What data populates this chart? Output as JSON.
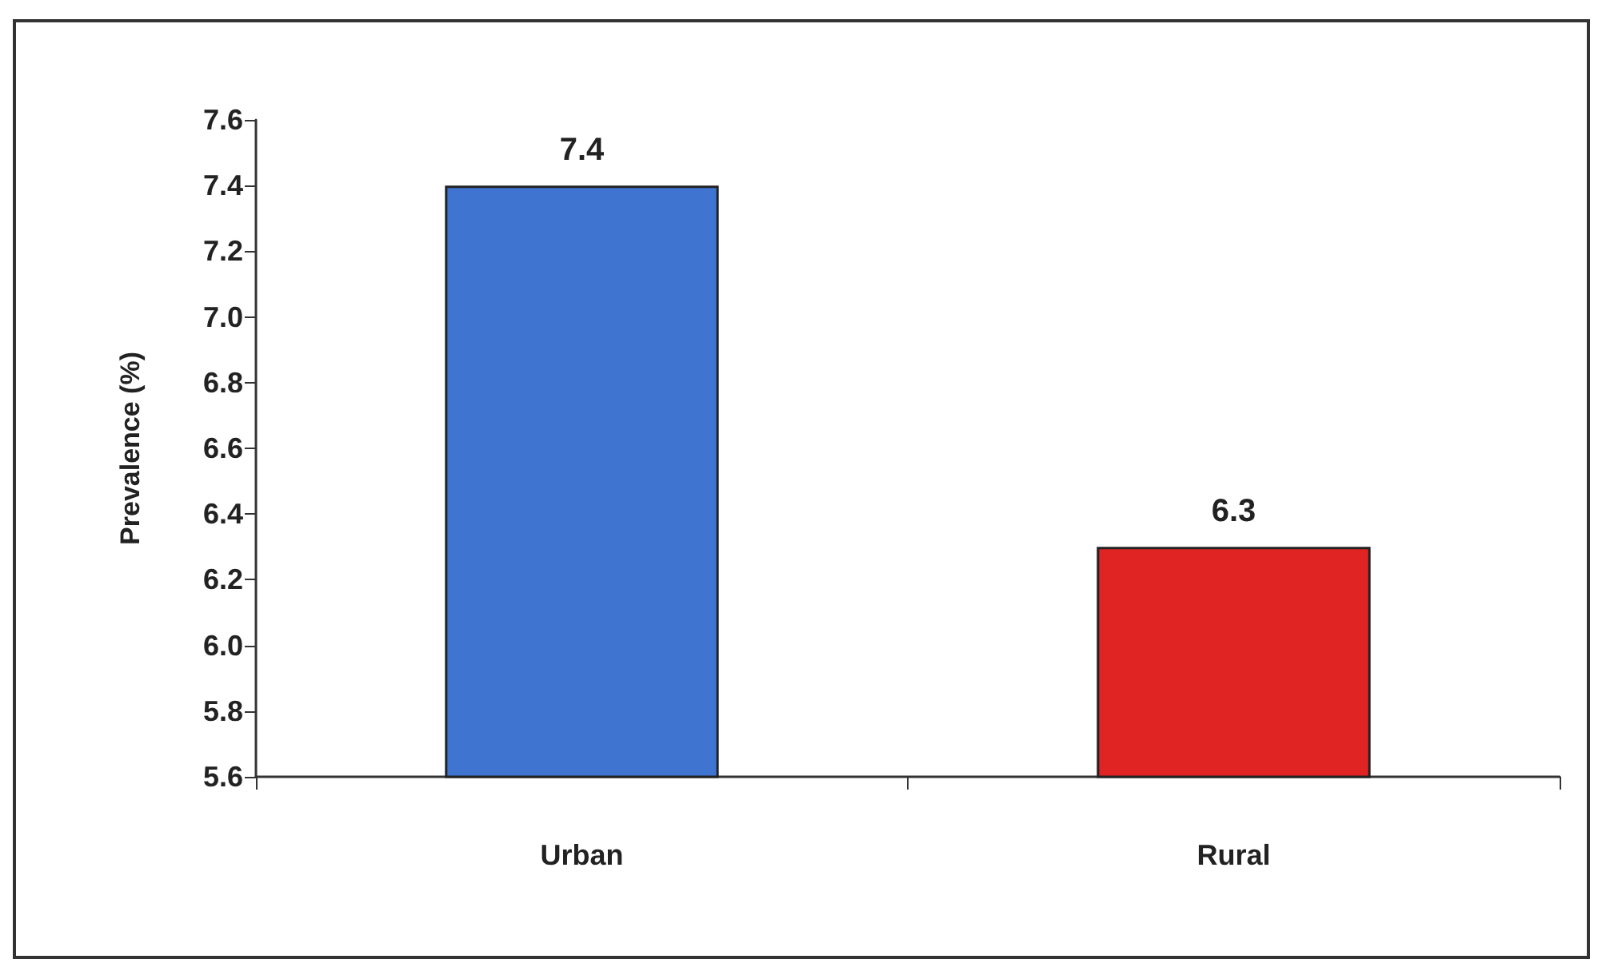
{
  "chart_data": {
    "type": "bar",
    "ylabel": "Prevalence (%)",
    "categories": [
      "Urban",
      "Rural"
    ],
    "values": [
      7.4,
      6.3
    ],
    "colors": [
      "#3f74d0",
      "#e02424"
    ],
    "data_labels": true,
    "ylim": [
      5.6,
      7.6
    ],
    "yticks": [
      5.6,
      5.8,
      {
        "value": 6,
        "label": "6.0"
      },
      6.2,
      6.4,
      6.6,
      6.8,
      {
        "value": 7,
        "label": "7.0"
      },
      7.2,
      7.4,
      7.6
    ],
    "grid": false
  }
}
